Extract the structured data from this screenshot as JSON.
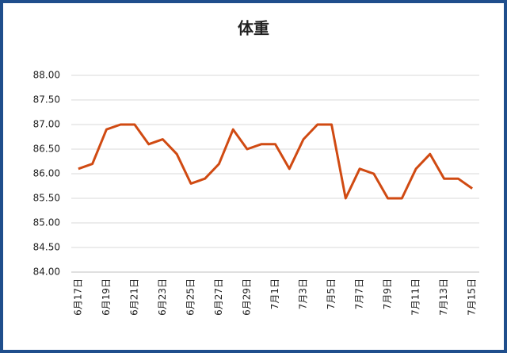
{
  "chart_data": {
    "type": "line",
    "title": "体重",
    "categories": [
      "6月17日",
      null,
      "6月19日",
      null,
      "6月21日",
      null,
      "6月23日",
      null,
      "6月25日",
      null,
      "6月27日",
      null,
      "6月29日",
      null,
      "7月1日",
      null,
      "7月3日",
      null,
      "7月5日",
      null,
      "7月7日",
      null,
      "7月9日",
      null,
      "7月11日",
      null,
      "7月13日",
      null,
      "7月15日"
    ],
    "series": [
      {
        "name": "体重",
        "color": "#d04a12",
        "values": [
          86.1,
          86.2,
          86.9,
          87.0,
          87.0,
          86.6,
          86.7,
          86.4,
          85.8,
          85.9,
          86.2,
          86.9,
          86.5,
          86.6,
          86.6,
          86.1,
          86.7,
          87.0,
          87.0,
          85.5,
          86.1,
          86.0,
          85.5,
          85.5,
          86.1,
          86.4,
          85.9,
          85.9,
          85.7
        ]
      }
    ],
    "ylim": [
      84,
      88
    ],
    "yticks": [
      {
        "value": 84,
        "label": "84.00"
      },
      {
        "value": 84.5,
        "label": "84.50"
      },
      {
        "value": 85,
        "label": "85.00"
      },
      {
        "value": 85.5,
        "label": "85.50"
      },
      {
        "value": 86,
        "label": "86.00"
      },
      {
        "value": 86.5,
        "label": "86.50"
      },
      {
        "value": 87,
        "label": "87.00"
      },
      {
        "value": 87.5,
        "label": "87.50"
      },
      {
        "value": 88,
        "label": "88.00"
      }
    ],
    "grid": true
  }
}
